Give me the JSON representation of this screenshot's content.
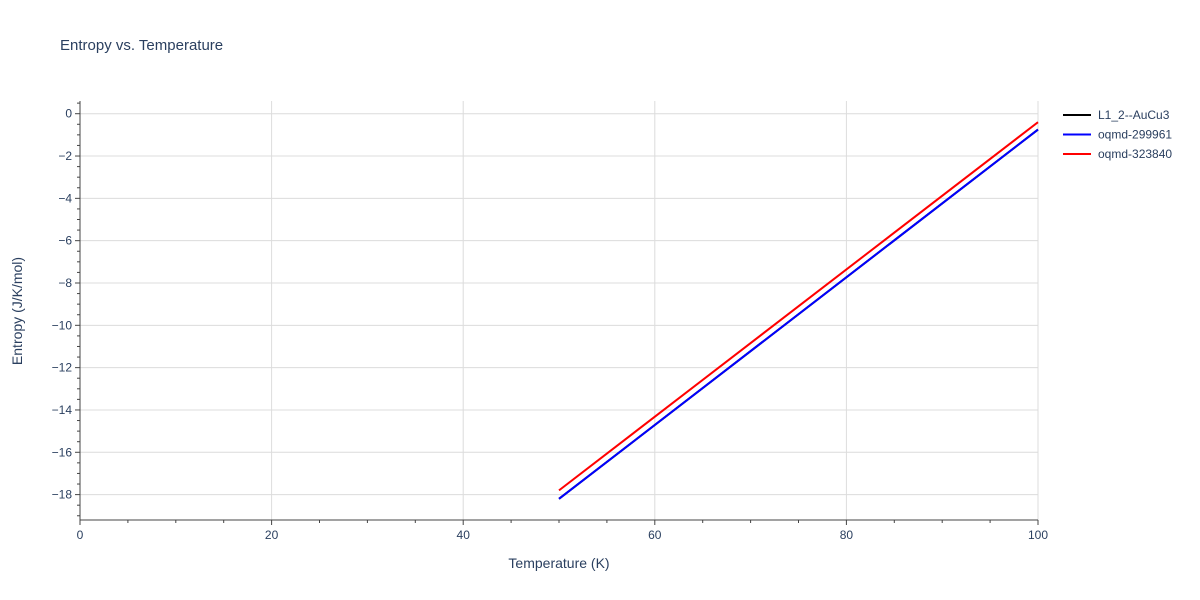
{
  "chart_data": {
    "type": "line",
    "title": "Entropy vs. Temperature",
    "xlabel": "Temperature (K)",
    "ylabel": "Entropy (J/K/mol)",
    "xlim": [
      0,
      100
    ],
    "ylim": [
      -19.2,
      0.6
    ],
    "x_ticks": [
      0,
      20,
      40,
      60,
      80,
      100
    ],
    "y_ticks": [
      0,
      -2,
      -4,
      -6,
      -8,
      -10,
      -12,
      -14,
      -16,
      -18
    ],
    "x_tick_labels": [
      "0",
      "20",
      "40",
      "60",
      "80",
      "100"
    ],
    "y_tick_labels": [
      "0",
      "−2",
      "−4",
      "−6",
      "−8",
      "−10",
      "−12",
      "−14",
      "−16",
      "−18"
    ],
    "grid": true,
    "legend_position": "top-right",
    "series": [
      {
        "name": "L1_2--AuCu3",
        "color": "#000000",
        "x": [
          50,
          100
        ],
        "y": [
          -18.2,
          -0.75
        ]
      },
      {
        "name": "oqmd-299961",
        "color": "#0000ff",
        "x": [
          50,
          100
        ],
        "y": [
          -18.2,
          -0.75
        ]
      },
      {
        "name": "oqmd-323840",
        "color": "#ff0000",
        "x": [
          50,
          100
        ],
        "y": [
          -17.8,
          -0.4
        ]
      }
    ]
  }
}
